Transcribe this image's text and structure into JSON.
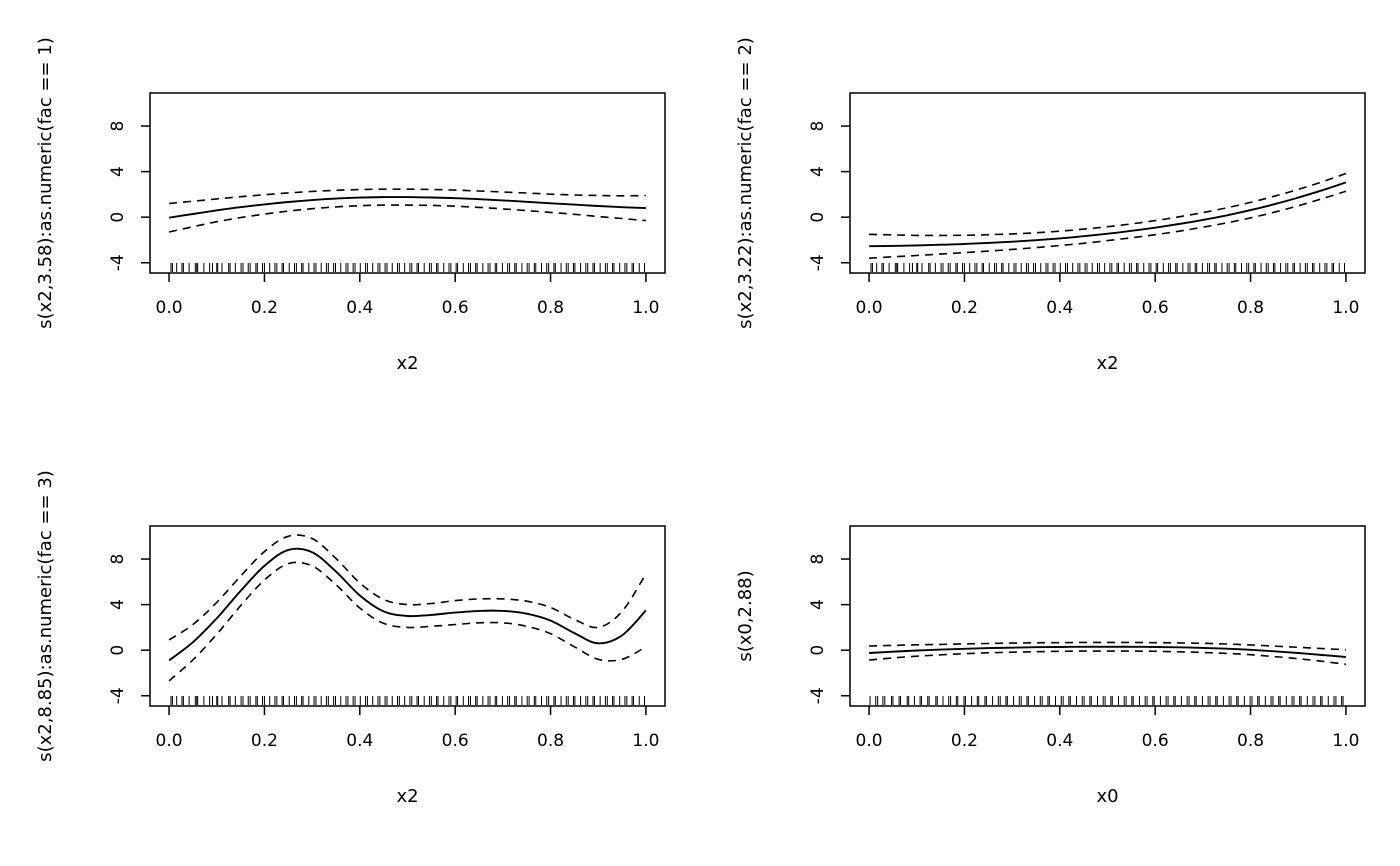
{
  "chart_data": [
    {
      "type": "line",
      "title": "",
      "xlabel": "x2",
      "ylabel": "s(x2,3.58):as.numeric(fac == 1)",
      "xlim": [
        -0.04,
        1.04
      ],
      "ylim": [
        -4.9,
        10.9
      ],
      "xticks": [
        0,
        0.2,
        0.4,
        0.6,
        0.8,
        1
      ],
      "xtick_labels": [
        "0.0",
        "0.2",
        "0.4",
        "0.6",
        "0.8",
        "1.0"
      ],
      "yticks": [
        -4,
        0,
        4,
        8
      ],
      "ytick_labels": [
        "-4",
        "0",
        "4",
        "8"
      ],
      "rug_var": "x2",
      "x": [
        0,
        0.05,
        0.1,
        0.15,
        0.2,
        0.25,
        0.3,
        0.35,
        0.4,
        0.45,
        0.5,
        0.55,
        0.6,
        0.65,
        0.7,
        0.75,
        0.8,
        0.85,
        0.9,
        0.95,
        1
      ],
      "series": [
        {
          "name": "fit",
          "style": "solid",
          "y": [
            -0.05,
            0.28,
            0.6,
            0.88,
            1.12,
            1.33,
            1.5,
            1.63,
            1.72,
            1.76,
            1.76,
            1.73,
            1.67,
            1.58,
            1.47,
            1.35,
            1.22,
            1.1,
            0.98,
            0.88,
            0.8
          ]
        },
        {
          "name": "upper-ci",
          "style": "dashed",
          "y": [
            1.2,
            1.4,
            1.6,
            1.8,
            1.97,
            2.13,
            2.26,
            2.36,
            2.43,
            2.46,
            2.46,
            2.43,
            2.38,
            2.3,
            2.21,
            2.12,
            2.02,
            1.95,
            1.9,
            1.88,
            1.9
          ]
        },
        {
          "name": "lower-ci",
          "style": "dashed",
          "y": [
            -1.3,
            -0.84,
            -0.4,
            -0.04,
            0.27,
            0.53,
            0.74,
            0.9,
            1.01,
            1.06,
            1.06,
            1.03,
            0.96,
            0.86,
            0.73,
            0.58,
            0.42,
            0.25,
            0.06,
            -0.12,
            -0.3
          ]
        }
      ]
    },
    {
      "type": "line",
      "title": "",
      "xlabel": "x2",
      "ylabel": "s(x2,3.22):as.numeric(fac == 2)",
      "xlim": [
        -0.04,
        1.04
      ],
      "ylim": [
        -4.9,
        10.9
      ],
      "xticks": [
        0,
        0.2,
        0.4,
        0.6,
        0.8,
        1
      ],
      "xtick_labels": [
        "0.0",
        "0.2",
        "0.4",
        "0.6",
        "0.8",
        "1.0"
      ],
      "yticks": [
        -4,
        0,
        4,
        8
      ],
      "ytick_labels": [
        "-4",
        "0",
        "4",
        "8"
      ],
      "rug_var": "x2",
      "x": [
        0,
        0.05,
        0.1,
        0.15,
        0.2,
        0.25,
        0.3,
        0.35,
        0.4,
        0.45,
        0.5,
        0.55,
        0.6,
        0.65,
        0.7,
        0.75,
        0.8,
        0.85,
        0.9,
        0.95,
        1
      ],
      "series": [
        {
          "name": "fit",
          "style": "solid",
          "y": [
            -2.55,
            -2.52,
            -2.48,
            -2.42,
            -2.35,
            -2.26,
            -2.15,
            -2.02,
            -1.86,
            -1.67,
            -1.45,
            -1.2,
            -0.92,
            -0.6,
            -0.24,
            0.16,
            0.62,
            1.14,
            1.72,
            2.36,
            3.05
          ]
        },
        {
          "name": "upper-ci",
          "style": "dashed",
          "y": [
            -1.5,
            -1.56,
            -1.6,
            -1.6,
            -1.59,
            -1.54,
            -1.47,
            -1.37,
            -1.23,
            -1.05,
            -0.84,
            -0.59,
            -0.3,
            0.03,
            0.4,
            0.82,
            1.3,
            1.84,
            2.44,
            3.1,
            3.83
          ]
        },
        {
          "name": "lower-ci",
          "style": "dashed",
          "y": [
            -3.6,
            -3.48,
            -3.36,
            -3.24,
            -3.11,
            -2.98,
            -2.83,
            -2.67,
            -2.49,
            -2.29,
            -2.06,
            -1.81,
            -1.54,
            -1.23,
            -0.88,
            -0.5,
            -0.06,
            0.44,
            1.0,
            1.62,
            2.27
          ]
        }
      ]
    },
    {
      "type": "line",
      "title": "",
      "xlabel": "x2",
      "ylabel": "s(x2,8.85):as.numeric(fac == 3)",
      "xlim": [
        -0.04,
        1.04
      ],
      "ylim": [
        -4.9,
        10.9
      ],
      "xticks": [
        0,
        0.2,
        0.4,
        0.6,
        0.8,
        1
      ],
      "xtick_labels": [
        "0.0",
        "0.2",
        "0.4",
        "0.6",
        "0.8",
        "1.0"
      ],
      "yticks": [
        -4,
        0,
        4,
        8
      ],
      "ytick_labels": [
        "-4",
        "0",
        "4",
        "8"
      ],
      "rug_var": "x2",
      "x": [
        0,
        0.05,
        0.1,
        0.15,
        0.2,
        0.25,
        0.3,
        0.35,
        0.4,
        0.45,
        0.5,
        0.55,
        0.6,
        0.65,
        0.7,
        0.75,
        0.8,
        0.85,
        0.9,
        0.95,
        1
      ],
      "series": [
        {
          "name": "fit",
          "style": "solid",
          "y": [
            -0.9,
            0.7,
            2.8,
            5.2,
            7.4,
            8.8,
            8.6,
            6.9,
            4.8,
            3.4,
            3.0,
            3.1,
            3.3,
            3.45,
            3.45,
            3.2,
            2.6,
            1.5,
            0.6,
            1.3,
            3.5
          ]
        },
        {
          "name": "upper-ci",
          "style": "dashed",
          "y": [
            0.9,
            2.25,
            4.2,
            6.5,
            8.65,
            10.0,
            9.8,
            8.05,
            5.9,
            4.45,
            4.0,
            4.1,
            4.35,
            4.5,
            4.5,
            4.3,
            3.75,
            2.7,
            2.0,
            3.4,
            6.7
          ]
        },
        {
          "name": "lower-ci",
          "style": "dashed",
          "y": [
            -2.7,
            -0.85,
            1.4,
            3.9,
            6.15,
            7.6,
            7.4,
            5.75,
            3.7,
            2.35,
            2.0,
            2.1,
            2.25,
            2.4,
            2.4,
            2.1,
            1.45,
            0.3,
            -0.8,
            -0.8,
            0.3
          ]
        }
      ]
    },
    {
      "type": "line",
      "title": "",
      "xlabel": "x0",
      "ylabel": "s(x0,2.88)",
      "xlim": [
        -0.04,
        1.04
      ],
      "ylim": [
        -4.9,
        10.9
      ],
      "xticks": [
        0,
        0.2,
        0.4,
        0.6,
        0.8,
        1
      ],
      "xtick_labels": [
        "0.0",
        "0.2",
        "0.4",
        "0.6",
        "0.8",
        "1.0"
      ],
      "yticks": [
        -4,
        0,
        4,
        8
      ],
      "ytick_labels": [
        "-4",
        "0",
        "4",
        "8"
      ],
      "rug_var": "x0",
      "x": [
        0,
        0.05,
        0.1,
        0.15,
        0.2,
        0.25,
        0.3,
        0.35,
        0.4,
        0.45,
        0.5,
        0.55,
        0.6,
        0.65,
        0.7,
        0.75,
        0.8,
        0.85,
        0.9,
        0.95,
        1
      ],
      "series": [
        {
          "name": "fit",
          "style": "solid",
          "y": [
            -0.25,
            -0.13,
            -0.03,
            0.05,
            0.12,
            0.18,
            0.22,
            0.26,
            0.28,
            0.3,
            0.3,
            0.3,
            0.28,
            0.25,
            0.2,
            0.13,
            0.03,
            -0.1,
            -0.25,
            -0.42,
            -0.6
          ]
        },
        {
          "name": "upper-ci",
          "style": "dashed",
          "y": [
            0.37,
            0.42,
            0.47,
            0.51,
            0.55,
            0.59,
            0.62,
            0.65,
            0.66,
            0.68,
            0.68,
            0.68,
            0.66,
            0.64,
            0.6,
            0.54,
            0.46,
            0.36,
            0.25,
            0.14,
            0.04
          ]
        },
        {
          "name": "lower-ci",
          "style": "dashed",
          "y": [
            -0.87,
            -0.68,
            -0.53,
            -0.41,
            -0.31,
            -0.23,
            -0.18,
            -0.13,
            -0.1,
            -0.08,
            -0.08,
            -0.08,
            -0.1,
            -0.14,
            -0.2,
            -0.28,
            -0.4,
            -0.56,
            -0.75,
            -0.98,
            -1.24
          ]
        }
      ]
    }
  ],
  "rug_data": {
    "x2": [
      0.004,
      0.007,
      0.016,
      0.027,
      0.03,
      0.042,
      0.055,
      0.058,
      0.06,
      0.073,
      0.085,
      0.091,
      0.1,
      0.102,
      0.111,
      0.125,
      0.128,
      0.139,
      0.151,
      0.155,
      0.166,
      0.17,
      0.182,
      0.185,
      0.196,
      0.2,
      0.211,
      0.222,
      0.226,
      0.237,
      0.24,
      0.252,
      0.263,
      0.267,
      0.278,
      0.281,
      0.293,
      0.304,
      0.308,
      0.319,
      0.33,
      0.334,
      0.345,
      0.349,
      0.36,
      0.371,
      0.375,
      0.386,
      0.39,
      0.401,
      0.412,
      0.416,
      0.427,
      0.438,
      0.442,
      0.453,
      0.457,
      0.468,
      0.479,
      0.483,
      0.494,
      0.505,
      0.509,
      0.52,
      0.523,
      0.535,
      0.546,
      0.55,
      0.561,
      0.564,
      0.576,
      0.587,
      0.591,
      0.602,
      0.605,
      0.617,
      0.628,
      0.632,
      0.643,
      0.646,
      0.658,
      0.669,
      0.673,
      0.684,
      0.687,
      0.699,
      0.71,
      0.714,
      0.725,
      0.728,
      0.74,
      0.751,
      0.755,
      0.766,
      0.769,
      0.781,
      0.792,
      0.796,
      0.807,
      0.81,
      0.822,
      0.833,
      0.837,
      0.848,
      0.851,
      0.863,
      0.874,
      0.878,
      0.889,
      0.892,
      0.904,
      0.915,
      0.919,
      0.93,
      0.933,
      0.945,
      0.956,
      0.96,
      0.971,
      0.974,
      0.986,
      0.997
    ],
    "x0": [
      0.002,
      0.014,
      0.018,
      0.029,
      0.033,
      0.047,
      0.05,
      0.063,
      0.066,
      0.08,
      0.083,
      0.095,
      0.107,
      0.11,
      0.123,
      0.126,
      0.14,
      0.143,
      0.155,
      0.167,
      0.171,
      0.183,
      0.186,
      0.199,
      0.202,
      0.215,
      0.227,
      0.23,
      0.243,
      0.246,
      0.259,
      0.271,
      0.275,
      0.287,
      0.29,
      0.303,
      0.315,
      0.319,
      0.331,
      0.334,
      0.347,
      0.359,
      0.363,
      0.375,
      0.378,
      0.391,
      0.403,
      0.407,
      0.419,
      0.422,
      0.435,
      0.447,
      0.451,
      0.463,
      0.466,
      0.479,
      0.491,
      0.495,
      0.507,
      0.51,
      0.523,
      0.535,
      0.539,
      0.551,
      0.554,
      0.567,
      0.579,
      0.583,
      0.595,
      0.598,
      0.611,
      0.623,
      0.627,
      0.639,
      0.642,
      0.655,
      0.667,
      0.671,
      0.683,
      0.686,
      0.699,
      0.711,
      0.715,
      0.727,
      0.73,
      0.743,
      0.755,
      0.759,
      0.771,
      0.774,
      0.787,
      0.799,
      0.803,
      0.815,
      0.818,
      0.831,
      0.843,
      0.847,
      0.859,
      0.862,
      0.875,
      0.887,
      0.891,
      0.903,
      0.906,
      0.919,
      0.931,
      0.935,
      0.947,
      0.95,
      0.963,
      0.975,
      0.979,
      0.991,
      0.994
    ]
  }
}
